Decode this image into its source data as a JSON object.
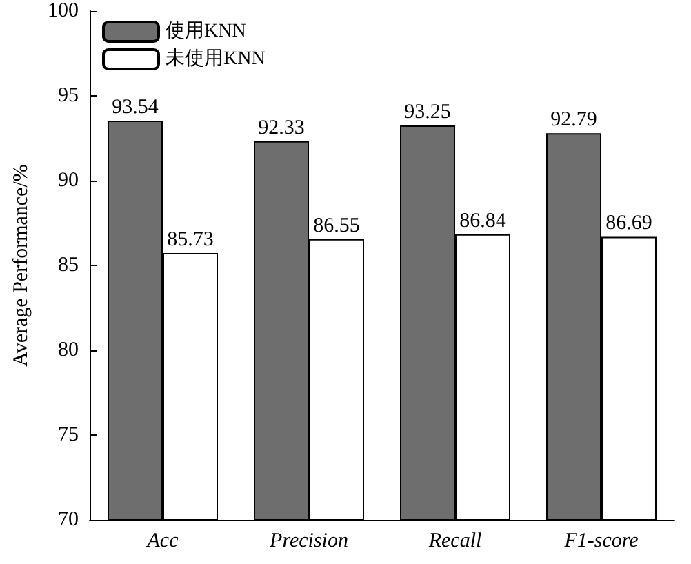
{
  "chart_data": {
    "type": "bar",
    "ylabel": "Average Performance/%",
    "categories": [
      "Acc",
      "Precision",
      "Recall",
      "F1-score"
    ],
    "series": [
      {
        "name": "使用KNN",
        "color": "#6e6e6e",
        "values": [
          93.54,
          92.33,
          93.25,
          92.79
        ]
      },
      {
        "name": "未使用KNN",
        "color": "#ffffff",
        "values": [
          85.73,
          86.55,
          86.84,
          86.69
        ]
      }
    ],
    "ylim": [
      70,
      100
    ],
    "yticks": [
      70,
      75,
      80,
      85,
      90,
      95,
      100
    ],
    "data_labels": true,
    "legend": "top left",
    "grid": false
  }
}
